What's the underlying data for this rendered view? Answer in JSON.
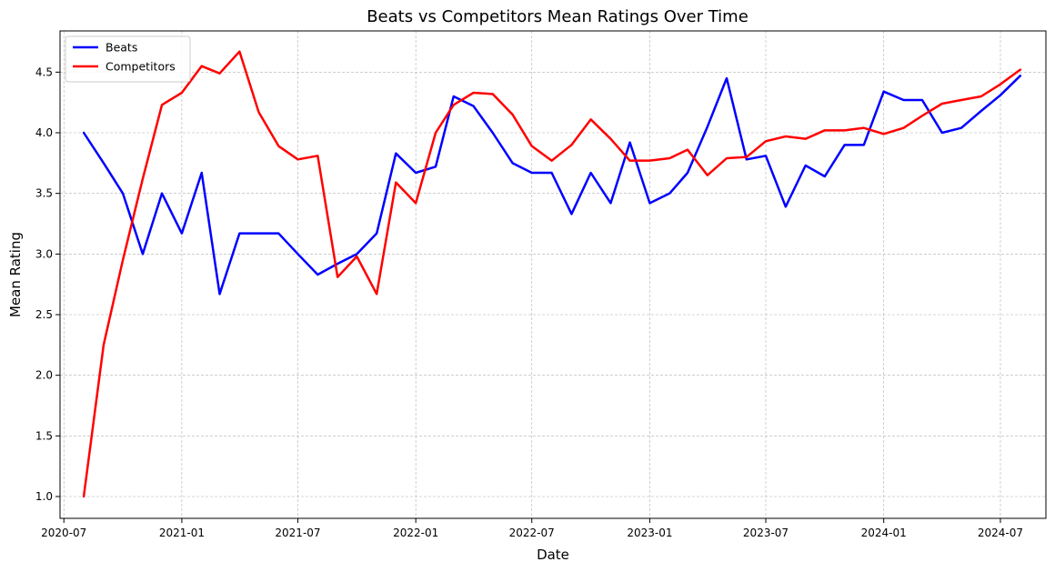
{
  "colors": {
    "beats": "#0000ff",
    "competitors": "#ff0000",
    "grid": "#b0b0b0",
    "axis": "#000000"
  },
  "chart_data": {
    "type": "line",
    "title": "Beats vs Competitors Mean Ratings Over Time",
    "xlabel": "Date",
    "ylabel": "Mean Rating",
    "xlim": [
      "2020-06-25",
      "2024-09-10"
    ],
    "ylim": [
      0.82,
      4.84
    ],
    "grid": true,
    "legend_position": "top-left",
    "x_ticks": [
      "2020-07",
      "2021-01",
      "2021-07",
      "2022-01",
      "2022-07",
      "2023-01",
      "2023-07",
      "2024-01",
      "2024-07"
    ],
    "y_ticks": [
      "1.0",
      "1.5",
      "2.0",
      "2.5",
      "3.0",
      "3.5",
      "4.0",
      "4.5"
    ],
    "x": [
      "2020-08-01",
      "2020-09-01",
      "2020-10-01",
      "2020-11-01",
      "2020-12-01",
      "2021-01-01",
      "2021-02-01",
      "2021-03-01",
      "2021-04-01",
      "2021-05-01",
      "2021-06-01",
      "2021-07-01",
      "2021-08-01",
      "2021-09-01",
      "2021-10-01",
      "2021-11-01",
      "2021-12-01",
      "2022-01-01",
      "2022-02-01",
      "2022-03-01",
      "2022-04-01",
      "2022-05-01",
      "2022-06-01",
      "2022-07-01",
      "2022-08-01",
      "2022-09-01",
      "2022-10-01",
      "2022-11-01",
      "2022-12-01",
      "2023-01-01",
      "2023-02-01",
      "2023-03-01",
      "2023-04-01",
      "2023-05-01",
      "2023-06-01",
      "2023-07-01",
      "2023-08-01",
      "2023-09-01",
      "2023-10-01",
      "2023-11-01",
      "2023-12-01",
      "2024-01-01",
      "2024-02-01",
      "2024-03-01",
      "2024-04-01",
      "2024-05-01",
      "2024-06-01",
      "2024-07-01",
      "2024-08-01"
    ],
    "series": [
      {
        "name": "Beats",
        "color": "#0000ff",
        "values": [
          4.0,
          3.75,
          3.5,
          3.0,
          3.5,
          3.17,
          3.67,
          2.67,
          3.17,
          3.17,
          3.17,
          3.0,
          2.83,
          2.92,
          3.0,
          3.17,
          3.83,
          3.67,
          3.72,
          4.3,
          4.22,
          4.0,
          3.75,
          3.67,
          3.67,
          3.33,
          3.67,
          3.42,
          3.92,
          3.42,
          3.5,
          3.67,
          4.05,
          4.45,
          3.78,
          3.81,
          3.39,
          3.73,
          3.64,
          3.9,
          3.9,
          4.34,
          4.27,
          4.27,
          4.0,
          4.04,
          4.18,
          4.31,
          4.47
        ]
      },
      {
        "name": "Competitors",
        "color": "#ff0000",
        "values": [
          1.0,
          2.25,
          2.95,
          3.62,
          4.23,
          4.33,
          4.55,
          4.49,
          4.67,
          4.17,
          3.89,
          3.78,
          3.81,
          2.81,
          2.98,
          2.67,
          3.59,
          3.42,
          4.0,
          4.23,
          4.33,
          4.32,
          4.15,
          3.89,
          3.77,
          3.9,
          4.11,
          3.95,
          3.77,
          3.77,
          3.79,
          3.86,
          3.65,
          3.79,
          3.8,
          3.93,
          3.97,
          3.95,
          4.02,
          4.02,
          4.04,
          3.99,
          4.04,
          4.14,
          4.24,
          4.27,
          4.3,
          4.4,
          4.52
        ]
      }
    ]
  }
}
